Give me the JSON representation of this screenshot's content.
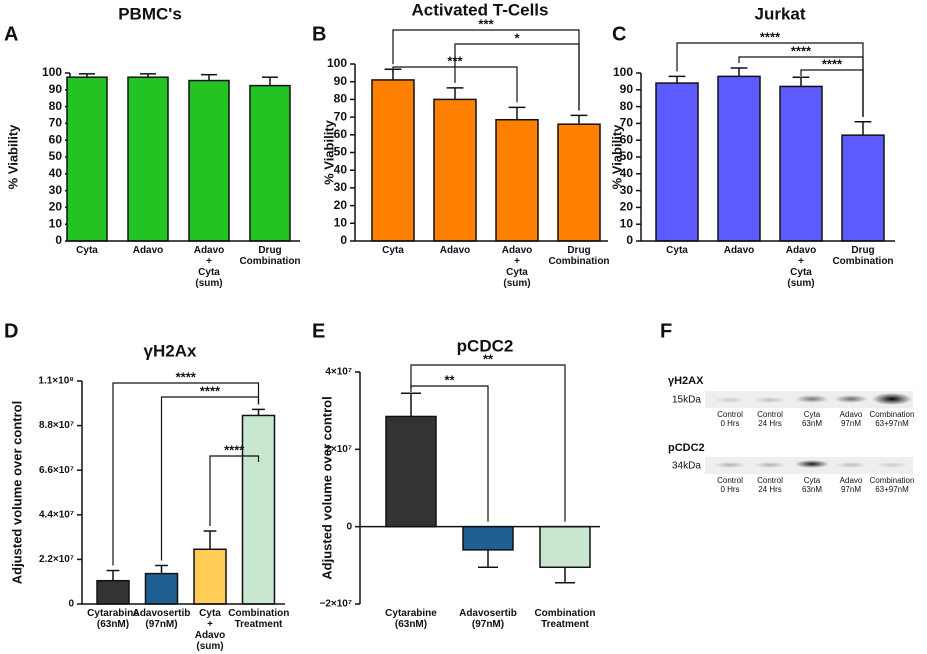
{
  "chart_data": [
    {
      "type": "bar",
      "panel": "A",
      "title": "PBMC's",
      "ylabel": "% Viability",
      "categories": [
        "Cyta",
        "Adavo",
        "Adavo\n+\nCyta\n(sum)",
        "Drug\nCombination"
      ],
      "values": [
        97.5,
        97.5,
        95.5,
        92.5
      ],
      "errors": [
        2,
        2,
        3.5,
        5
      ],
      "colors": [
        "#22c322",
        "#22c322",
        "#22c322",
        "#22c322"
      ],
      "ylim": [
        0,
        100
      ],
      "yticks": [
        0,
        10,
        20,
        30,
        40,
        50,
        60,
        70,
        80,
        90,
        100
      ],
      "annotations": []
    },
    {
      "type": "bar",
      "panel": "B",
      "title": "Activated T-Cells",
      "ylabel": "% Viability",
      "categories": [
        "Cyta",
        "Adavo",
        "Adavo\n+\nCyta\n(sum)",
        "Drug\nCombination"
      ],
      "values": [
        91,
        80,
        68.5,
        66
      ],
      "errors": [
        6,
        6.5,
        7,
        5
      ],
      "colors": [
        "#ff7f00",
        "#ff7f00",
        "#ff7f00",
        "#ff7f00"
      ],
      "ylim": [
        0,
        100
      ],
      "yticks": [
        0,
        10,
        20,
        30,
        40,
        50,
        60,
        70,
        80,
        90,
        100
      ],
      "annotations": [
        {
          "label": "***",
          "from": 0,
          "to": 3
        },
        {
          "label": "*",
          "from": 1,
          "to": 3
        },
        {
          "label": "***",
          "from": 0,
          "to": 2
        }
      ]
    },
    {
      "type": "bar",
      "panel": "C",
      "title": "Jurkat",
      "ylabel": "% Viability",
      "categories": [
        "Cyta",
        "Adavo",
        "Adavo\n+\nCyta\n(sum)",
        "Drug\nCombination"
      ],
      "values": [
        94,
        98,
        92,
        63
      ],
      "errors": [
        4,
        5,
        5.5,
        8
      ],
      "colors": [
        "#5b5bff",
        "#5b5bff",
        "#5b5bff",
        "#5b5bff"
      ],
      "ylim": [
        0,
        100
      ],
      "yticks": [
        0,
        10,
        20,
        30,
        40,
        50,
        60,
        70,
        80,
        90,
        100
      ],
      "annotations": [
        {
          "label": "****",
          "from": 0,
          "to": 3
        },
        {
          "label": "****",
          "from": 1,
          "to": 3
        },
        {
          "label": "****",
          "from": 2,
          "to": 3
        }
      ]
    },
    {
      "type": "bar",
      "panel": "D",
      "title": "γH2Ax",
      "ylabel": "Adjusted volume over control",
      "categories": [
        "Cytarabine\n(63nM)",
        "Adavosertib\n(97nM)",
        "Cyta\n+\nAdavo\n(sum)",
        "Combination\nTreatment"
      ],
      "values": [
        11500000,
        15000000,
        27000000,
        93000000
      ],
      "errors": [
        5000000,
        4000000,
        9000000,
        3000000
      ],
      "colors": [
        "#333333",
        "#1f5f91",
        "#ffcc55",
        "#c8e6d0"
      ],
      "ylim": [
        0,
        110000000
      ],
      "yticks": [
        0,
        {
          "value": 22000000,
          "label": "2.2×10⁷"
        },
        {
          "value": 44000000,
          "label": "4.4×10⁷"
        },
        {
          "value": 66000000,
          "label": "6.6×10⁷"
        },
        {
          "value": 88000000,
          "label": "8.8×10⁷"
        },
        {
          "value": 110000000,
          "label": "1.1×10⁸"
        }
      ],
      "annotations": [
        {
          "label": "****",
          "from": 0,
          "to": 3
        },
        {
          "label": "****",
          "from": 1,
          "to": 3
        },
        {
          "label": "****",
          "from": 2,
          "to": 3
        }
      ]
    },
    {
      "type": "bar",
      "panel": "E",
      "title": "pCDC2",
      "ylabel": "Adjusted volume over control",
      "categories": [
        "Cytarabine\n(63nM)",
        "Adavosertib\n(97nM)",
        "Combination\nTreatment"
      ],
      "values": [
        28500000,
        -6000000,
        -10500000
      ],
      "errors": [
        6000000,
        4500000,
        4000000
      ],
      "colors": [
        "#333333",
        "#1f5f91",
        "#c8e6d0"
      ],
      "ylim": [
        -20000000,
        40000000
      ],
      "yticks": [
        {
          "value": -20000000,
          "label": "−2×10⁷"
        },
        0,
        {
          "value": 20000000,
          "label": "2×10⁷"
        },
        {
          "value": 40000000,
          "label": "4×10⁷"
        }
      ],
      "annotations": [
        {
          "label": "**",
          "from": 0,
          "to": 1
        },
        {
          "label": "**",
          "from": 0,
          "to": 2
        }
      ]
    }
  ],
  "blot": {
    "panel": "F",
    "rows": [
      {
        "protein": "γH2AX",
        "size": "15kDa",
        "lanes": [
          "Control\n0 Hrs",
          "Control\n24 Hrs",
          "Cyta\n63nM",
          "Adavo\n97nM",
          "Combination\n63+97nM"
        ]
      },
      {
        "protein": "pCDC2",
        "size": "34kDa",
        "lanes": [
          "Control\n0 Hrs",
          "Control\n24 Hrs",
          "Cyta\n63nM",
          "Adavo\n97nM",
          "Combination\n63+97nM"
        ]
      }
    ]
  }
}
